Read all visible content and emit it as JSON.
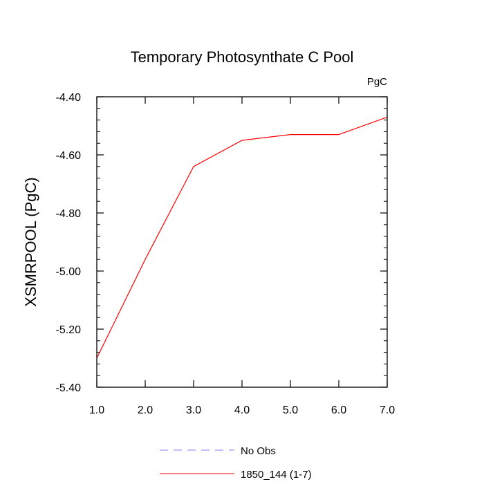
{
  "chart_data": {
    "type": "line",
    "title": "Temporary Photosynthate C Pool",
    "units_label": "PgC",
    "xlabel": "",
    "ylabel": "XSMRPOOL  (PgC)",
    "xlim": [
      1.0,
      7.0
    ],
    "ylim": [
      -5.4,
      -4.4
    ],
    "x_ticks": [
      "1.0",
      "2.0",
      "3.0",
      "4.0",
      "5.0",
      "6.0",
      "7.0"
    ],
    "y_ticks": [
      "-4.40",
      "-4.60",
      "-4.80",
      "-5.00",
      "-5.20",
      "-5.40"
    ],
    "grid": false,
    "legend_position": "bottom-center",
    "series": [
      {
        "name": "1850_144 (1-7)",
        "color": "#ff0000",
        "style": "solid",
        "x": [
          1,
          2,
          3,
          4,
          5,
          6,
          7
        ],
        "values": [
          -5.3,
          -4.96,
          -4.64,
          -4.55,
          -4.53,
          -4.53,
          -4.47
        ]
      }
    ],
    "legend": [
      {
        "label": "No Obs",
        "color": "#8080ff",
        "style": "dashed"
      },
      {
        "label": "1850_144 (1-7)",
        "color": "#ff0000",
        "style": "solid"
      }
    ]
  }
}
